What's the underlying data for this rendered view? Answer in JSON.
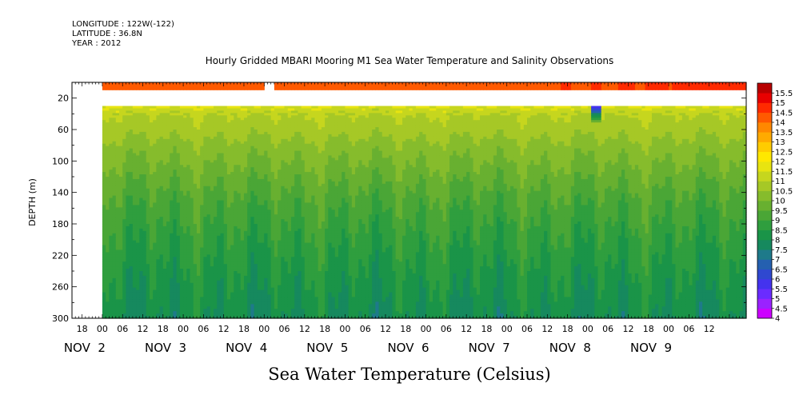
{
  "header": {
    "longitude": "LONGITUDE : 122W(-122)",
    "latitude": "LATITUDE : 36.8N",
    "year": "YEAR : 2012"
  },
  "chart_data": {
    "type": "heatmap",
    "title": "Hourly Gridded MBARI Mooring M1 Sea Water Temperature and Salinity Observations",
    "xlabel": "Sea Water Temperature (Celsius)",
    "ylabel": "DEPTH (m)",
    "x_range_hours": [
      -9,
      191
    ],
    "data_start_hours": 0,
    "x_hour_ticks": [
      {
        "h": -6,
        "label": "18"
      },
      {
        "h": 0,
        "label": "00"
      },
      {
        "h": 6,
        "label": "06"
      },
      {
        "h": 12,
        "label": "12"
      },
      {
        "h": 18,
        "label": "18"
      },
      {
        "h": 24,
        "label": "00"
      },
      {
        "h": 30,
        "label": "06"
      },
      {
        "h": 36,
        "label": "12"
      },
      {
        "h": 42,
        "label": "18"
      },
      {
        "h": 48,
        "label": "00"
      },
      {
        "h": 54,
        "label": "06"
      },
      {
        "h": 60,
        "label": "12"
      },
      {
        "h": 66,
        "label": "18"
      },
      {
        "h": 72,
        "label": "00"
      },
      {
        "h": 78,
        "label": "06"
      },
      {
        "h": 84,
        "label": "12"
      },
      {
        "h": 90,
        "label": "18"
      },
      {
        "h": 96,
        "label": "00"
      },
      {
        "h": 102,
        "label": "06"
      },
      {
        "h": 108,
        "label": "12"
      },
      {
        "h": 114,
        "label": "18"
      },
      {
        "h": 120,
        "label": "00"
      },
      {
        "h": 126,
        "label": "06"
      },
      {
        "h": 132,
        "label": "12"
      },
      {
        "h": 138,
        "label": "18"
      },
      {
        "h": 144,
        "label": "00"
      },
      {
        "h": 150,
        "label": "06"
      },
      {
        "h": 156,
        "label": "12"
      },
      {
        "h": 162,
        "label": "18"
      },
      {
        "h": 168,
        "label": "00"
      },
      {
        "h": 174,
        "label": "06"
      },
      {
        "h": 180,
        "label": "12"
      }
    ],
    "x_day_labels": [
      {
        "h": 0,
        "label": "NOV  2"
      },
      {
        "h": 24,
        "label": "NOV  3"
      },
      {
        "h": 48,
        "label": "NOV  4"
      },
      {
        "h": 72,
        "label": "NOV  5"
      },
      {
        "h": 96,
        "label": "NOV  6"
      },
      {
        "h": 120,
        "label": "NOV  7"
      },
      {
        "h": 144,
        "label": "NOV  8"
      },
      {
        "h": 168,
        "label": "NOV  9"
      }
    ],
    "y_range": [
      0,
      300
    ],
    "y_ticks": [
      20,
      60,
      100,
      140,
      180,
      220,
      260,
      300
    ],
    "missing_depth_band": [
      10,
      30
    ],
    "missing_surface_gap_hours": [
      48,
      51
    ],
    "surface_temperature": 14.2,
    "depth_profile": [
      {
        "depth": 30,
        "temp": 11.5
      },
      {
        "depth": 40,
        "temp": 11.0
      },
      {
        "depth": 60,
        "temp": 10.7
      },
      {
        "depth": 80,
        "temp": 10.3
      },
      {
        "depth": 100,
        "temp": 10.0
      },
      {
        "depth": 120,
        "temp": 9.7
      },
      {
        "depth": 140,
        "temp": 9.4
      },
      {
        "depth": 160,
        "temp": 9.15
      },
      {
        "depth": 180,
        "temp": 8.95
      },
      {
        "depth": 200,
        "temp": 8.75
      },
      {
        "depth": 220,
        "temp": 8.55
      },
      {
        "depth": 240,
        "temp": 8.4
      },
      {
        "depth": 260,
        "temp": 8.25
      },
      {
        "depth": 280,
        "temp": 8.1
      },
      {
        "depth": 300,
        "temp": 7.95
      }
    ],
    "anomaly": {
      "hour": 146,
      "depth_range": [
        30,
        48
      ],
      "temp": 5.5
    },
    "colorbar": {
      "levels": [
        4,
        4.5,
        5,
        5.5,
        6,
        6.5,
        7,
        7.5,
        8,
        8.5,
        9,
        9.5,
        10,
        10.5,
        11,
        11.5,
        12,
        12.5,
        13,
        13.5,
        14,
        14.5,
        15,
        15.5
      ],
      "level_labels": [
        "4",
        "4.5",
        "5",
        "5.5",
        "6",
        "6.5",
        "7",
        "7.5",
        "8",
        "8.5",
        "9",
        "9.5",
        "10",
        "10.5",
        "11",
        "11.5",
        "12",
        "12.5",
        "13",
        "13.5",
        "14",
        "14.5",
        "15",
        "15.5"
      ],
      "colors": [
        "#cc00ff",
        "#9a22ff",
        "#6a2cff",
        "#4433ee",
        "#2f48d0",
        "#2560b0",
        "#1e7a8a",
        "#16895e",
        "#1a9448",
        "#2f9e3e",
        "#4aa636",
        "#68b030",
        "#86bc2c",
        "#a6c826",
        "#c6d61e",
        "#e8e410",
        "#ffe800",
        "#ffcc00",
        "#ffaa00",
        "#ff8800",
        "#ff5a00",
        "#ff2a00",
        "#e80000",
        "#b80000"
      ]
    }
  }
}
